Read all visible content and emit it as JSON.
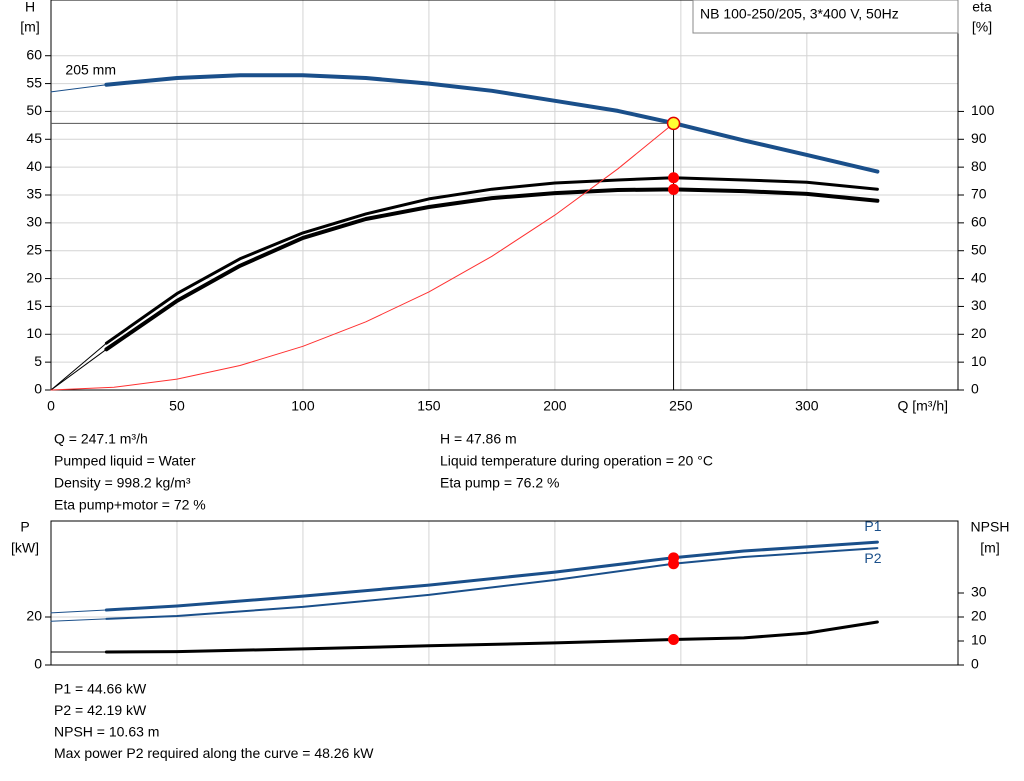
{
  "chart_data": [
    {
      "type": "line",
      "title": "NB 100-250/205, 3*400 V, 50Hz",
      "x_label": "Q [m³/h]",
      "y_label": "H",
      "y_unit": "[m]",
      "y2_label": "eta",
      "y2_unit": "[%]",
      "xlim": [
        0,
        360
      ],
      "xticks": [
        0,
        50,
        100,
        150,
        200,
        250,
        300
      ],
      "ylim": [
        0,
        70
      ],
      "yticks": [
        0,
        5,
        10,
        15,
        20,
        25,
        30,
        35,
        40,
        45,
        50,
        55,
        60
      ],
      "y2lim": [
        0,
        140
      ],
      "y2ticks": [
        0,
        10,
        20,
        30,
        40,
        50,
        60,
        70,
        80,
        90,
        100
      ],
      "grid": true,
      "series": [
        {
          "color": "#1a4f8a",
          "width": 1,
          "x": [
            0,
            22
          ],
          "values": [
            53.5,
            54.8
          ]
        },
        {
          "name": "205 mm",
          "color": "#1a4f8a",
          "width": 4,
          "x": [
            22,
            50,
            75,
            100,
            125,
            150,
            175,
            200,
            225,
            247,
            275,
            300,
            328
          ],
          "values": [
            54.8,
            56.0,
            56.5,
            56.5,
            56.0,
            55.0,
            53.7,
            51.9,
            50.1,
            47.9,
            44.8,
            42.2,
            39.2
          ]
        },
        {
          "color": "#000000",
          "width": 1,
          "axis": "y2",
          "x": [
            0,
            22
          ],
          "values": [
            0,
            16.8
          ]
        },
        {
          "color": "#000000",
          "width": 3,
          "axis": "y2",
          "x": [
            22,
            50,
            75,
            100,
            125,
            150,
            175,
            200,
            225,
            247,
            275,
            300,
            328
          ],
          "values": [
            16.8,
            34.6,
            47.1,
            56.4,
            63.2,
            68.6,
            72.1,
            74.3,
            75.4,
            76.2,
            75.4,
            74.6,
            72.1
          ]
        },
        {
          "color": "#000000",
          "width": 1,
          "axis": "y2",
          "x": [
            0,
            22
          ],
          "values": [
            0,
            14.6
          ]
        },
        {
          "color": "#000000",
          "width": 4,
          "axis": "y2",
          "x": [
            22,
            50,
            75,
            100,
            125,
            150,
            175,
            200,
            225,
            247,
            275,
            300,
            328
          ],
          "values": [
            14.6,
            32.0,
            44.6,
            54.6,
            61.4,
            65.7,
            68.9,
            70.7,
            71.8,
            72.0,
            71.4,
            70.4,
            67.9
          ]
        },
        {
          "color": "#ff3030",
          "width": 1,
          "x": [
            0,
            25,
            50,
            75,
            100,
            125,
            150,
            175,
            200,
            225,
            247.1
          ],
          "values": [
            0,
            0.49,
            1.96,
            4.4,
            7.84,
            12.25,
            17.6,
            24.0,
            31.4,
            39.7,
            47.86
          ]
        }
      ],
      "markers": [
        {
          "x": 247.1,
          "y": 47.86,
          "color": "#ffff33",
          "guides": true
        },
        {
          "x": 247.1,
          "y": 76.2,
          "axis": "y2",
          "color": "#ff0000"
        },
        {
          "x": 247.1,
          "y": 72,
          "axis": "y2",
          "color": "#ff0000"
        }
      ],
      "info": [
        [
          "Q = 247.1 m³/h",
          "Pumped liquid = Water",
          "Density = 998.2 kg/m³",
          "Eta pump+motor = 72 %"
        ],
        [
          "H = 47.86 m",
          "Liquid temperature during operation = 20 °C",
          "Eta pump = 76.2 %"
        ]
      ]
    },
    {
      "type": "line",
      "y_label": "P",
      "y_unit": "[kW]",
      "y2_label": "NPSH",
      "y2_unit": "[m]",
      "xlim": [
        0,
        360
      ],
      "xticks": [
        0,
        50,
        100,
        150,
        200,
        250,
        300
      ],
      "xtick_labels": false,
      "ylim": [
        0,
        60
      ],
      "yticks": [
        0,
        20
      ],
      "y2lim": [
        0,
        60
      ],
      "y2ticks": [
        0,
        10,
        20,
        30
      ],
      "grid": true,
      "series": [
        {
          "color": "#1a4f8a",
          "width": 1,
          "x": [
            0,
            22
          ],
          "values": [
            21.7,
            22.9
          ]
        },
        {
          "name": "P1",
          "color": "#1a4f8a",
          "width": 3,
          "x": [
            22,
            50,
            100,
            150,
            200,
            247,
            275,
            300,
            328
          ],
          "values": [
            22.9,
            24.6,
            28.7,
            33.3,
            38.7,
            44.66,
            47.5,
            49.2,
            51.2
          ]
        },
        {
          "color": "#1a4f8a",
          "width": 1,
          "x": [
            0,
            22
          ],
          "values": [
            18.2,
            19.2
          ]
        },
        {
          "name": "P2",
          "color": "#1a4f8a",
          "width": 2,
          "x": [
            22,
            50,
            100,
            150,
            200,
            247,
            275,
            300,
            328
          ],
          "values": [
            19.2,
            20.4,
            24.2,
            29.2,
            35.4,
            42.19,
            45.0,
            46.7,
            48.7
          ]
        },
        {
          "color": "#000000",
          "width": 1,
          "axis": "y2",
          "x": [
            0,
            22
          ],
          "values": [
            5.4,
            5.4
          ]
        },
        {
          "color": "#000000",
          "width": 3,
          "axis": "y2",
          "x": [
            22,
            50,
            100,
            150,
            200,
            247,
            275,
            300,
            328
          ],
          "values": [
            5.4,
            5.6,
            6.7,
            8.0,
            9.2,
            10.63,
            11.3,
            13.3,
            17.9
          ]
        }
      ],
      "markers": [
        {
          "x": 247.1,
          "y": 44.66,
          "color": "#ff0000"
        },
        {
          "x": 247.1,
          "y": 42.19,
          "color": "#ff0000"
        },
        {
          "x": 247.1,
          "y": 10.63,
          "axis": "y2",
          "color": "#ff0000"
        }
      ],
      "info": [
        [
          "P1 = 44.66 kW",
          "P2 = 42.19 kW",
          "NPSH = 10.63 m",
          "Max power P2 required along the curve = 48.26 kW"
        ]
      ]
    }
  ]
}
